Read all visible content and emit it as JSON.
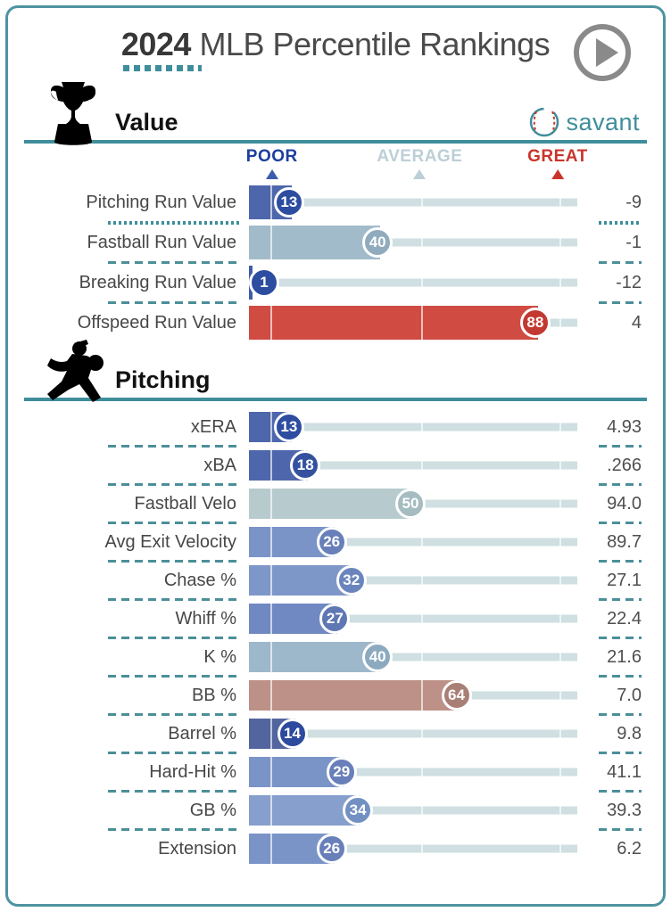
{
  "title": {
    "year": "2024",
    "rest": " MLB Percentile Rankings"
  },
  "brand": {
    "name": "savant"
  },
  "colors": {
    "accent_teal": "#3F8E9B",
    "border_teal": "#4E93A1",
    "track": "#cfdfe2",
    "poor": "#1d3e9e",
    "poor_triangle": "#3a5dae",
    "average": "#bccfd6",
    "great": "#c9352c"
  },
  "scale": {
    "poor": {
      "label": "POOR",
      "pos": 7,
      "color": "#1d3e9e",
      "tri": "#3a5dae"
    },
    "average": {
      "label": "AVERAGE",
      "pos": 52,
      "color": "#bccfd6",
      "tri": "#bccfd6"
    },
    "great": {
      "label": "GREAT",
      "pos": 94,
      "color": "#c9352c",
      "tri": "#c9352c"
    },
    "gridlines": [
      6.5,
      52.5,
      94.5
    ]
  },
  "sections": [
    {
      "title": "Value",
      "icon": "trophy-icon",
      "rows": [
        {
          "label": "Pitching Run Value",
          "pct": 13,
          "value": "-9",
          "fill": "#4e66ab",
          "badge": "#2d4da0"
        },
        {
          "label": "Fastball Run Value",
          "pct": 40,
          "value": "-1",
          "fill": "#a2bbca",
          "badge": "#90abbd"
        },
        {
          "label": "Breaking Run Value",
          "pct": 1,
          "value": "-12",
          "fill": "#3f5ca9",
          "badge": "#2d4da0"
        },
        {
          "label": "Offspeed Run Value",
          "pct": 88,
          "value": "4",
          "fill": "#d04b42",
          "badge": "#c23931"
        }
      ]
    },
    {
      "title": "Pitching",
      "icon": "pitcher-icon",
      "rows": [
        {
          "label": "xERA",
          "pct": 13,
          "value": "4.93",
          "fill": "#4e66ab",
          "badge": "#2d4da0"
        },
        {
          "label": "xBA",
          "pct": 18,
          "value": ".266",
          "fill": "#4e66ab",
          "badge": "#33519f"
        },
        {
          "label": "Fastball Velo",
          "pct": 50,
          "value": "94.0",
          "fill": "#b7cbce",
          "badge": "#a5bcc0"
        },
        {
          "label": "Avg Exit Velocity",
          "pct": 26,
          "value": "89.7",
          "fill": "#7b94c8",
          "badge": "#687fb9"
        },
        {
          "label": "Chase %",
          "pct": 32,
          "value": "27.1",
          "fill": "#7e97c9",
          "badge": "#6a85be"
        },
        {
          "label": "Whiff %",
          "pct": 27,
          "value": "22.4",
          "fill": "#7089c2",
          "badge": "#5f77b3"
        },
        {
          "label": "K %",
          "pct": 40,
          "value": "21.6",
          "fill": "#9db7cb",
          "badge": "#8caabf"
        },
        {
          "label": "BB %",
          "pct": 64,
          "value": "7.0",
          "fill": "#bd9187",
          "badge": "#a87f75"
        },
        {
          "label": "Barrel %",
          "pct": 14,
          "value": "9.8",
          "fill": "#52659e",
          "badge": "#2c4a9e"
        },
        {
          "label": "Hard-Hit %",
          "pct": 29,
          "value": "41.1",
          "fill": "#7b94c8",
          "badge": "#687fb9"
        },
        {
          "label": "GB %",
          "pct": 34,
          "value": "39.3",
          "fill": "#869fcc",
          "badge": "#7390c2"
        },
        {
          "label": "Extension",
          "pct": 26,
          "value": "6.2",
          "fill": "#7b94c8",
          "badge": "#687fb9"
        }
      ]
    }
  ],
  "chart_data": [
    {
      "type": "bar",
      "orientation": "horizontal",
      "title": "Value",
      "categories": [
        "Pitching Run Value",
        "Fastball Run Value",
        "Breaking Run Value",
        "Offspeed Run Value"
      ],
      "values": [
        13,
        40,
        1,
        88
      ],
      "display_values": [
        "-9",
        "-1",
        "-12",
        "4"
      ],
      "xlabel": "Percentile",
      "ylabel": "",
      "xlim": [
        0,
        100
      ],
      "markers": {
        "POOR": 6.5,
        "AVERAGE": 52.5,
        "GREAT": 94.5
      },
      "legend": "none",
      "grid": "vertical gridlines at 6.5/52.5/94.5"
    },
    {
      "type": "bar",
      "orientation": "horizontal",
      "title": "Pitching",
      "categories": [
        "xERA",
        "xBA",
        "Fastball Velo",
        "Avg Exit Velocity",
        "Chase %",
        "Whiff %",
        "K %",
        "BB %",
        "Barrel %",
        "Hard-Hit %",
        "GB %",
        "Extension"
      ],
      "values": [
        13,
        18,
        50,
        26,
        32,
        27,
        40,
        64,
        14,
        29,
        34,
        26
      ],
      "display_values": [
        "4.93",
        ".266",
        "94.0",
        "89.7",
        "27.1",
        "22.4",
        "21.6",
        "7.0",
        "9.8",
        "41.1",
        "39.3",
        "6.2"
      ],
      "xlabel": "Percentile",
      "ylabel": "",
      "xlim": [
        0,
        100
      ],
      "markers": {
        "POOR": 6.5,
        "AVERAGE": 52.5,
        "GREAT": 94.5
      },
      "legend": "none",
      "grid": "vertical gridlines at 6.5/52.5/94.5"
    }
  ]
}
